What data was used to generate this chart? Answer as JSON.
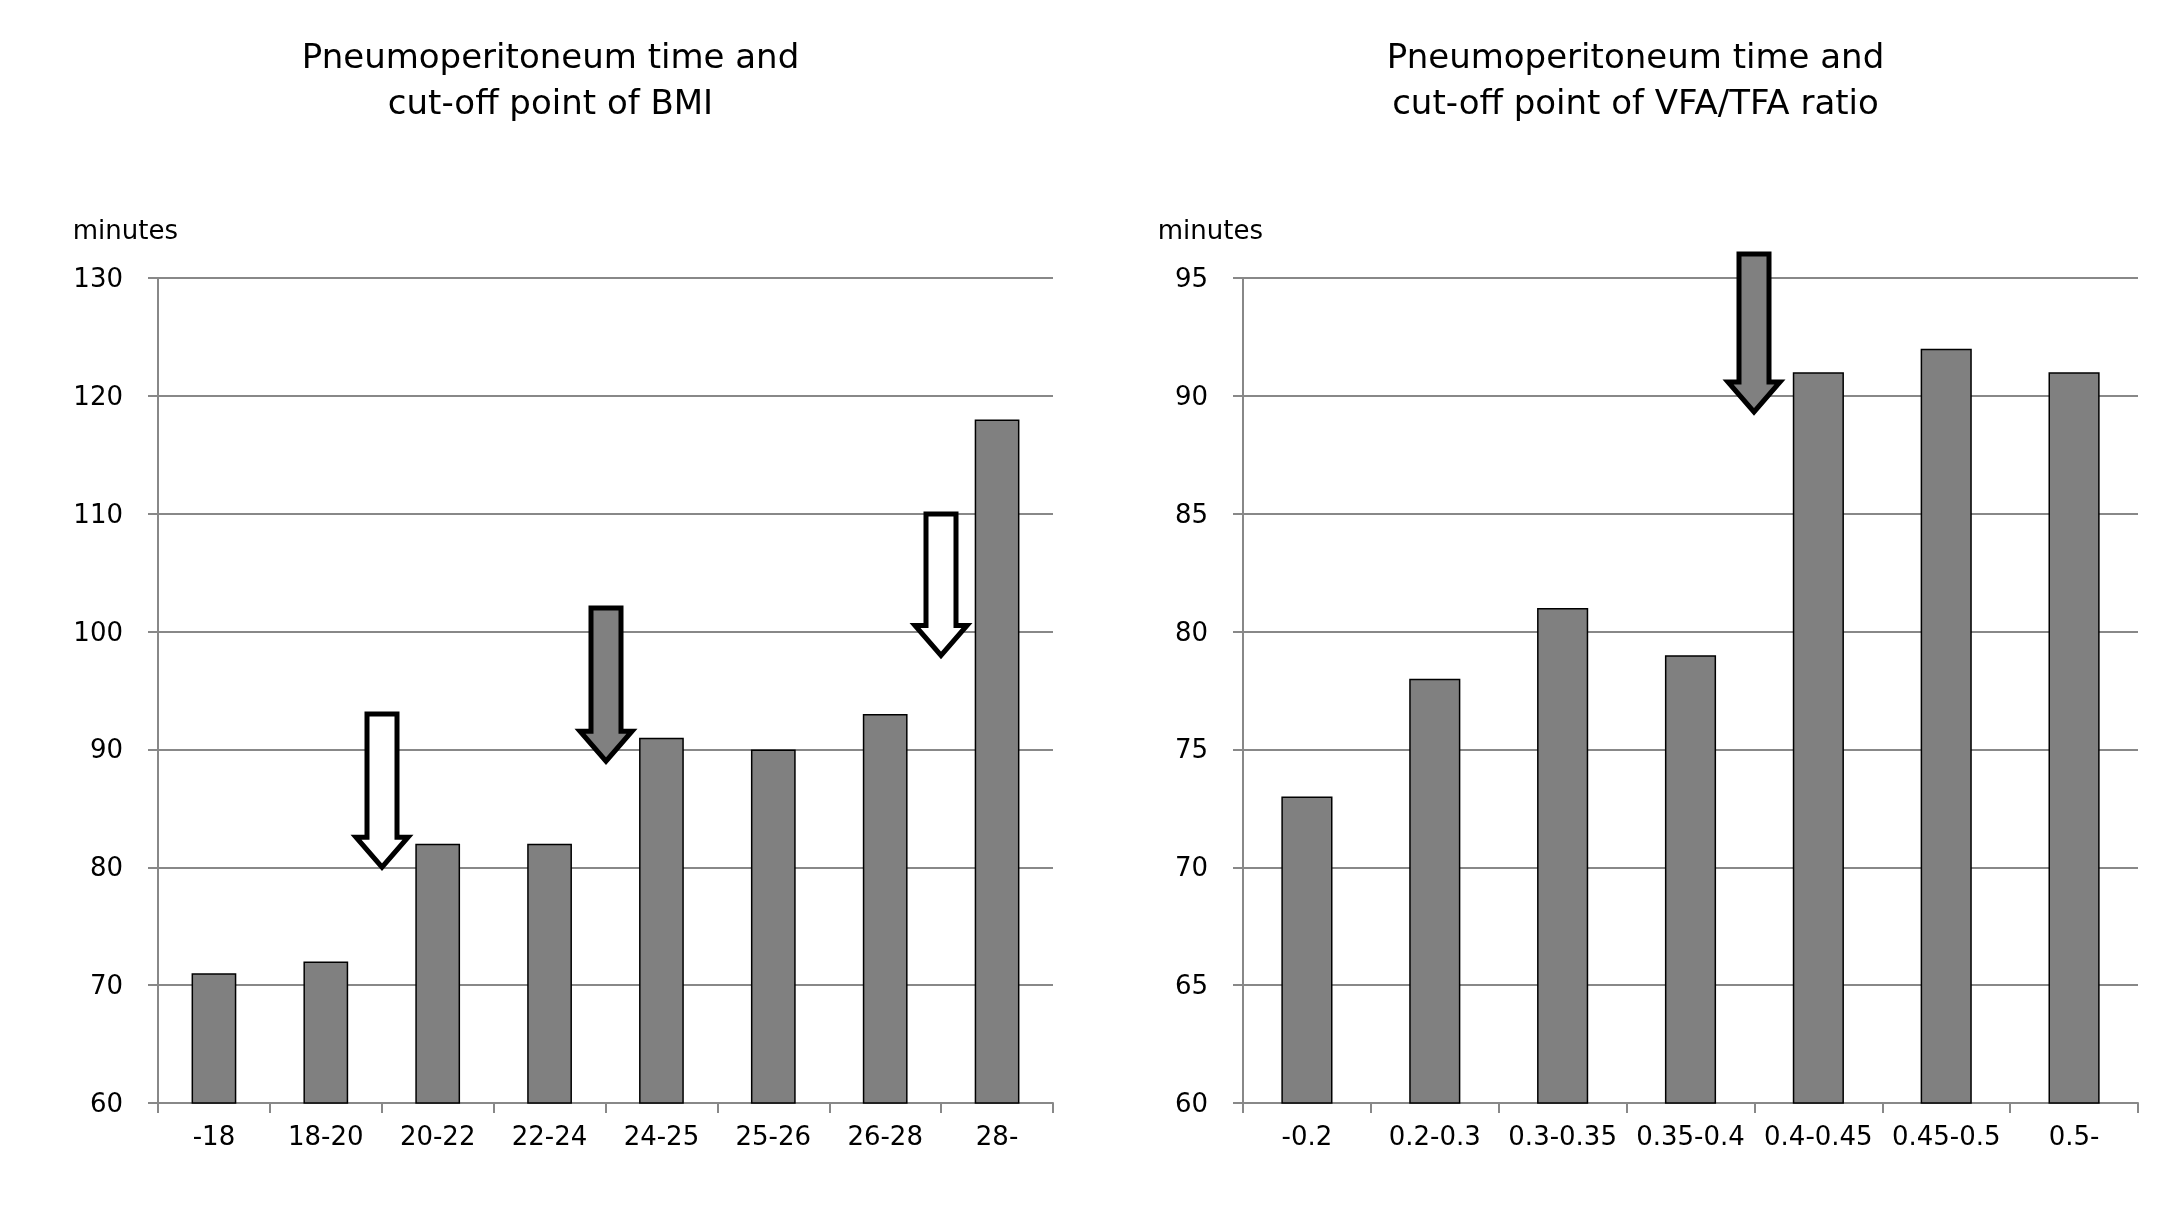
{
  "chart_data": [
    {
      "type": "bar",
      "title": "Pneumoperitoneum time and\ncut-off point of BMI",
      "ylabel": "minutes",
      "categories": [
        "-18",
        "18-20",
        "20-22",
        "22-24",
        "24-25",
        "25-26",
        "26-28",
        "28-"
      ],
      "values": [
        71,
        72,
        82,
        82,
        91,
        90,
        93,
        118
      ],
      "color": "#808080",
      "ylim": [
        60,
        130
      ],
      "yticks": [
        60,
        70,
        80,
        90,
        100,
        110,
        120,
        130
      ],
      "grid": "y"
    },
    {
      "type": "bar",
      "title": "Pneumoperitoneum time and\ncut-off point of VFA/TFA ratio",
      "ylabel": "minutes",
      "categories": [
        "-0.2",
        "0.2-0.3",
        "0.3-0.35",
        "0.35-0.4",
        "0.4-0.45",
        "0.45-0.5",
        "0.5-"
      ],
      "values": [
        73,
        78,
        81,
        79,
        91,
        92,
        91
      ],
      "color": "#808080",
      "ylim": [
        60,
        95
      ],
      "yticks": [
        60,
        65,
        70,
        75,
        80,
        85,
        90,
        95
      ],
      "grid": "y"
    }
  ]
}
